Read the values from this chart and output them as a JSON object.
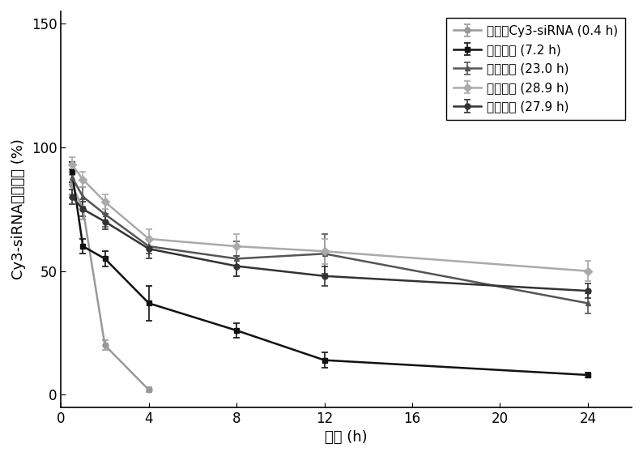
{
  "series": [
    {
      "label": "游离的Cy3-siRNA (0.4 h)",
      "color": "#999999",
      "marker": "o",
      "marker_size": 5,
      "linewidth": 1.8,
      "x": [
        0.5,
        1,
        2,
        4
      ],
      "y": [
        85,
        75,
        20,
        2
      ],
      "yerr": [
        4,
        4,
        2,
        1
      ]
    },
    {
      "label": "实施例二 (7.2 h)",
      "color": "#111111",
      "marker": "s",
      "marker_size": 5,
      "linewidth": 1.8,
      "x": [
        0.5,
        1,
        2,
        4,
        8,
        12,
        24
      ],
      "y": [
        90,
        60,
        55,
        37,
        26,
        14,
        8
      ],
      "yerr": [
        4,
        3,
        3,
        7,
        3,
        3,
        1
      ]
    },
    {
      "label": "对比例一 (23.0 h)",
      "color": "#555555",
      "marker": "^",
      "marker_size": 5,
      "linewidth": 1.8,
      "x": [
        0.5,
        1,
        2,
        4,
        8,
        12,
        24
      ],
      "y": [
        88,
        80,
        73,
        60,
        55,
        57,
        37
      ],
      "yerr": [
        3,
        4,
        5,
        3,
        7,
        8,
        4
      ]
    },
    {
      "label": "对比例二 (28.9 h)",
      "color": "#aaaaaa",
      "marker": "D",
      "marker_size": 5,
      "linewidth": 1.8,
      "x": [
        0.5,
        1,
        2,
        4,
        8,
        12,
        24
      ],
      "y": [
        93,
        87,
        78,
        63,
        60,
        58,
        50
      ],
      "yerr": [
        3,
        3,
        3,
        4,
        5,
        5,
        4
      ]
    },
    {
      "label": "实施例三 (27.9 h)",
      "color": "#333333",
      "marker": "o",
      "marker_size": 5,
      "linewidth": 1.8,
      "x": [
        0.5,
        1,
        2,
        4,
        8,
        12,
        24
      ],
      "y": [
        80,
        75,
        70,
        59,
        52,
        48,
        42
      ],
      "yerr": [
        3,
        3,
        3,
        4,
        4,
        4,
        3
      ]
    }
  ],
  "xlabel": "时间 (h)",
  "ylabel": "Cy3-siRNA相对含量 (%)",
  "xlim": [
    0,
    26
  ],
  "ylim": [
    -5,
    155
  ],
  "yticks": [
    0,
    50,
    100,
    150
  ],
  "xticks": [
    0,
    4,
    8,
    12,
    16,
    20,
    24
  ],
  "legend_loc": "upper right",
  "background_color": "#ffffff",
  "axis_fontsize": 13,
  "legend_fontsize": 11,
  "tick_fontsize": 12
}
